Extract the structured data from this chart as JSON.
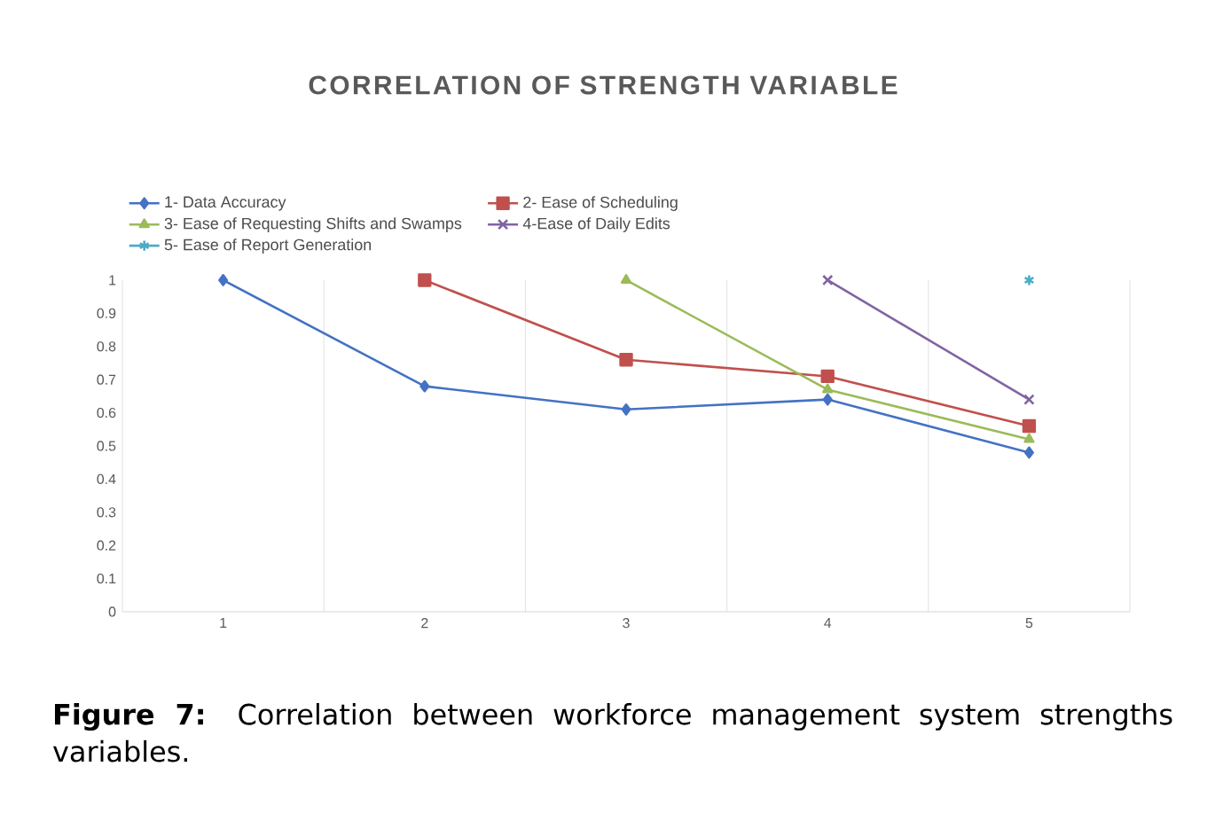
{
  "chart_data": {
    "type": "line",
    "title": "CORRELATION OF STRENGTH VARIABLE",
    "categories": [
      "1",
      "2",
      "3",
      "4",
      "5"
    ],
    "series": [
      {
        "name": "1- Data Accuracy",
        "color": "#4472c4",
        "marker": "diamond",
        "values": [
          1,
          0.68,
          0.61,
          0.64,
          0.48
        ]
      },
      {
        "name": "2- Ease of Scheduling",
        "color": "#c0504d",
        "marker": "square",
        "values": [
          null,
          1,
          0.76,
          0.71,
          0.56
        ]
      },
      {
        "name": "3- Ease of Requesting Shifts and Swamps",
        "color": "#9bbb59",
        "marker": "triangle",
        "values": [
          null,
          null,
          1,
          0.67,
          0.52
        ]
      },
      {
        "name": "4-Ease of Daily Edits",
        "color": "#8064a2",
        "marker": "cross",
        "values": [
          null,
          null,
          null,
          1,
          0.64
        ]
      },
      {
        "name": "5- Ease of Report Generation",
        "color": "#4bacc6",
        "marker": "cross",
        "values": [
          null,
          null,
          null,
          null,
          1
        ]
      }
    ],
    "ylim": [
      0,
      1
    ],
    "yticks": [
      0,
      0.1,
      0.2,
      0.3,
      0.4,
      0.5,
      0.6,
      0.7,
      0.8,
      0.9,
      1
    ],
    "grid": "x",
    "legend": "top",
    "line_style": "solid",
    "annotations": [
      "**Figure 7:** Correlation between workforce management system strengths variables."
    ]
  }
}
